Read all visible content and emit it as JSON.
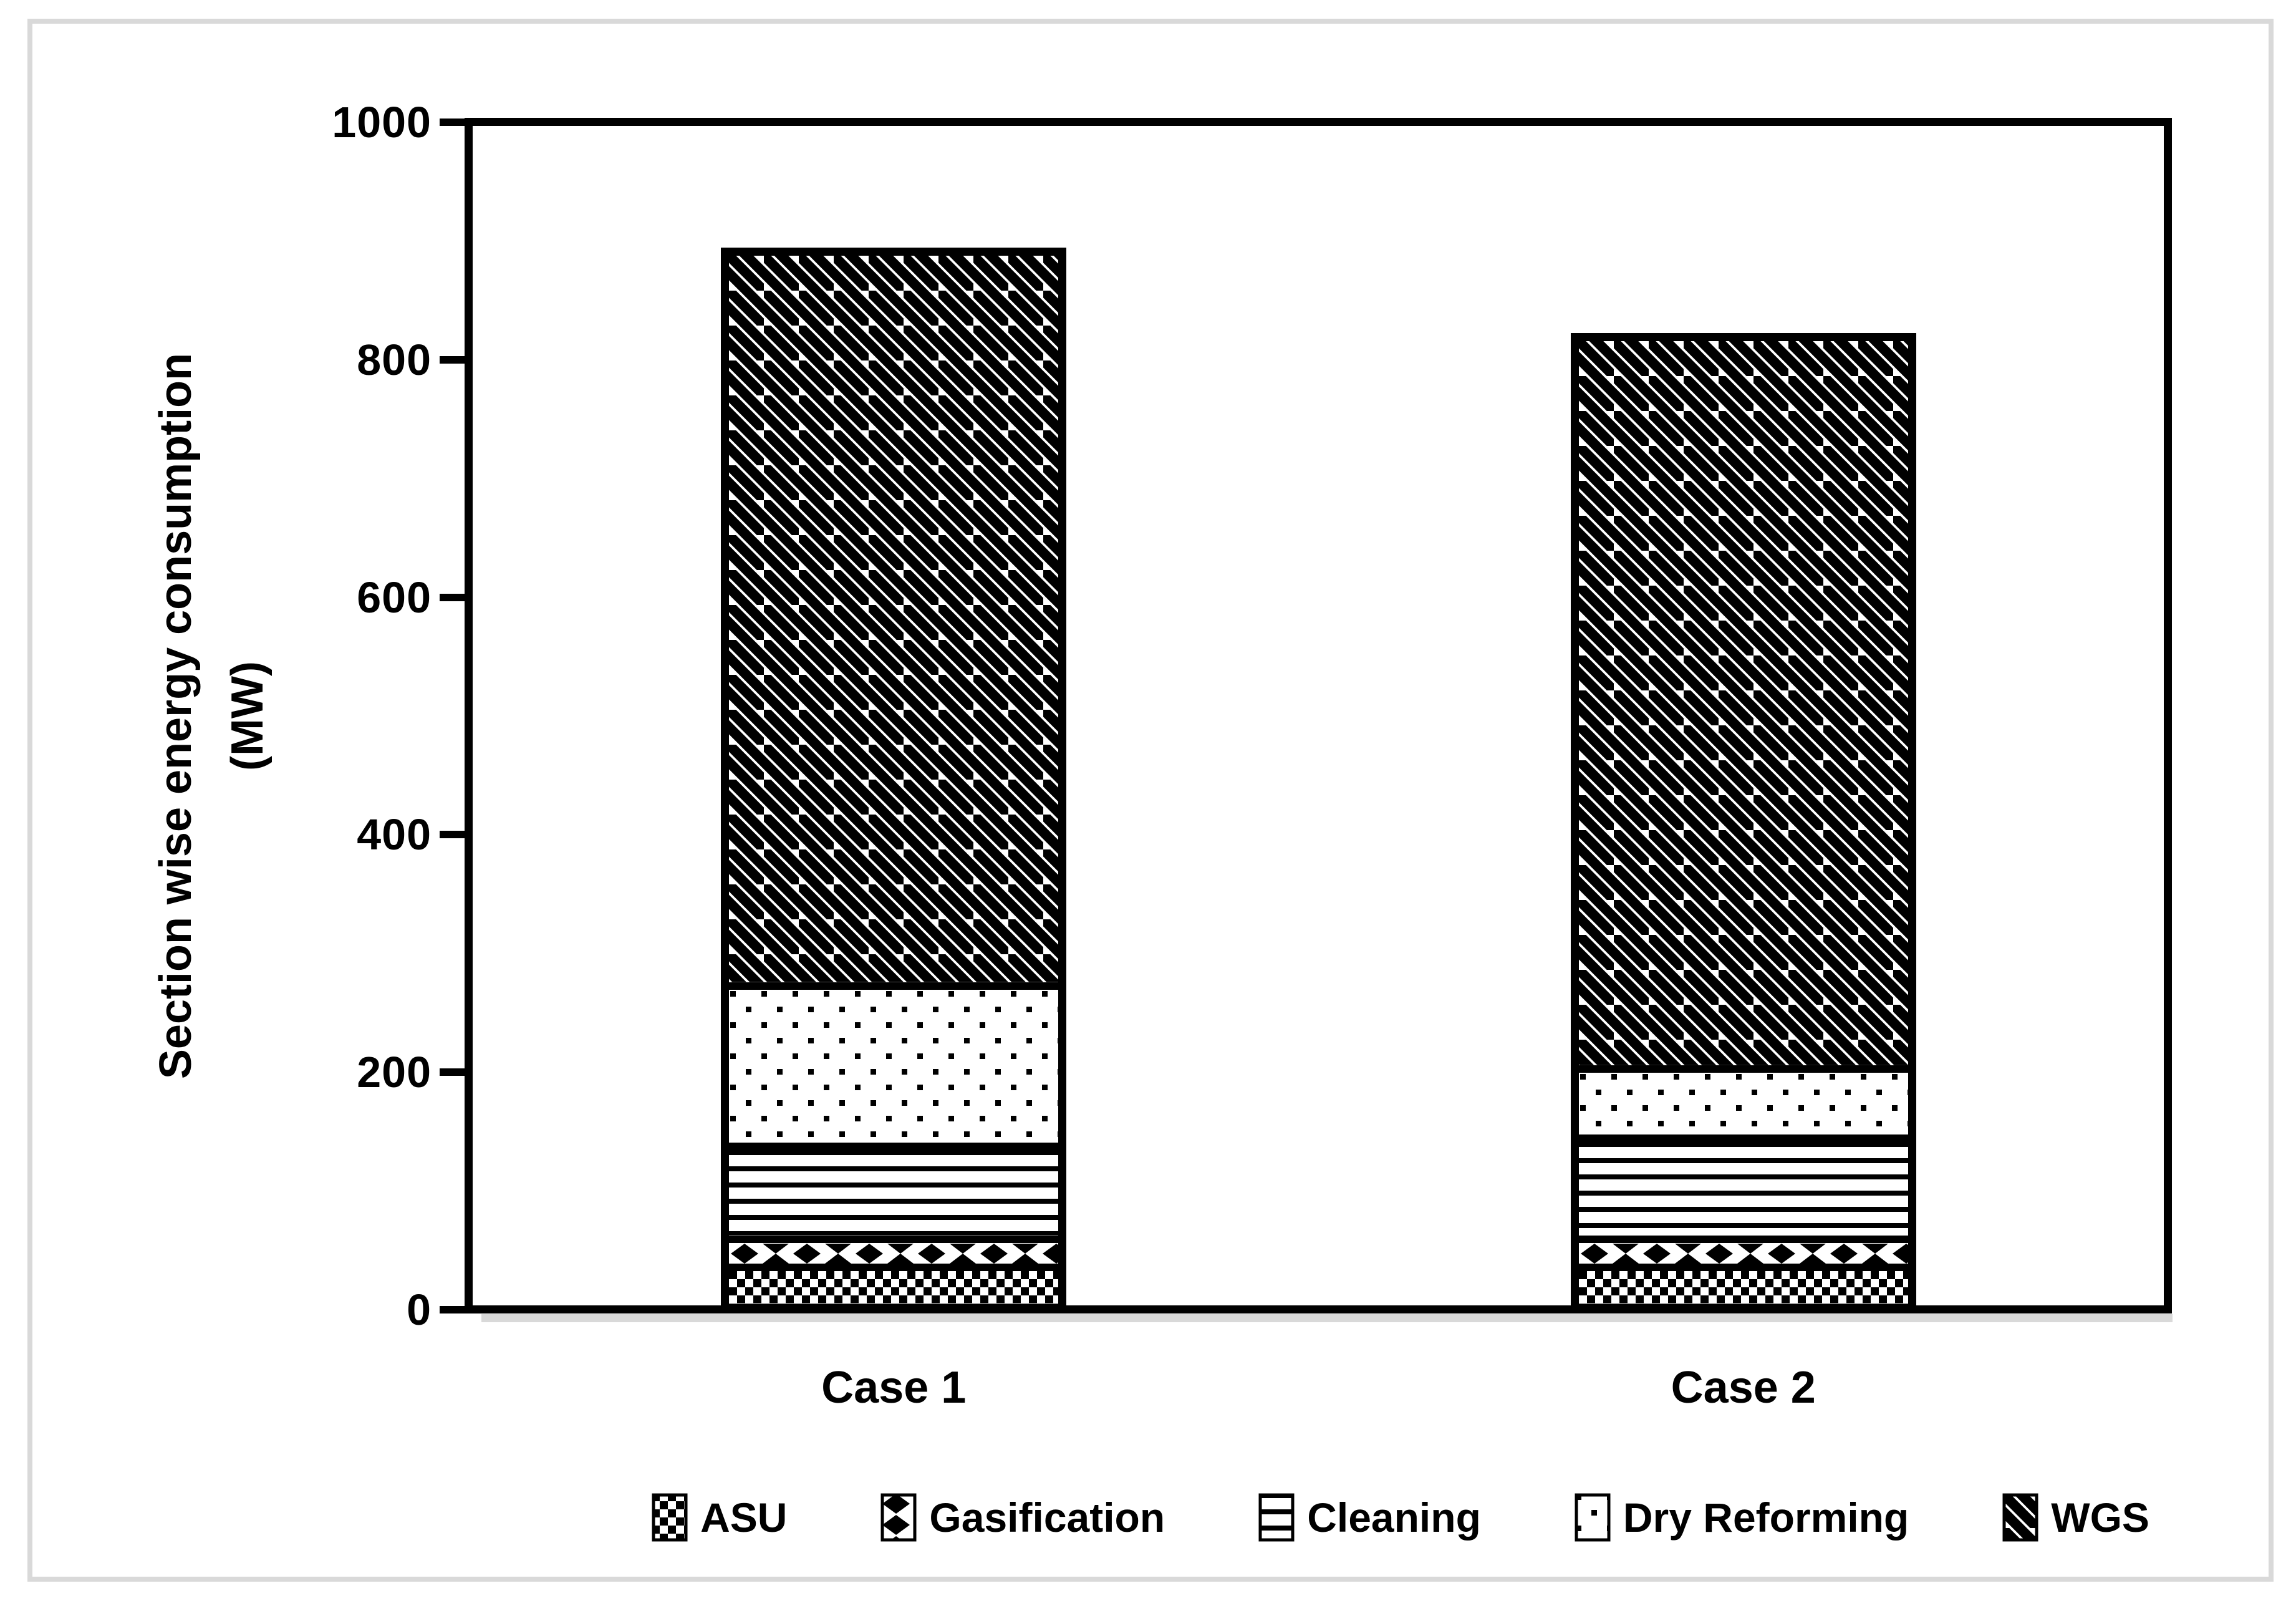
{
  "figure": {
    "background": "#ffffff",
    "outer_border_color": "#d9d9d9",
    "axis_color": "#000000",
    "shadow_color": "#d9d9d9"
  },
  "chart_data": {
    "type": "bar",
    "stacked": true,
    "title": "",
    "categories": [
      "Case 1",
      "Case 2"
    ],
    "series": [
      {
        "name": "ASU",
        "pattern": "checkerboard",
        "values": [
          34,
          34
        ]
      },
      {
        "name": "Gasification",
        "pattern": "diamond-hourglass",
        "values": [
          24,
          24
        ]
      },
      {
        "name": "Cleaning",
        "pattern": "horizontal-lines",
        "values": [
          78,
          85
        ]
      },
      {
        "name": "Dry Reforming",
        "pattern": "sparse-dots",
        "values": [
          135,
          58
        ]
      },
      {
        "name": "WGS",
        "pattern": "diagonal-stripes",
        "values": [
          618,
          616
        ]
      }
    ],
    "totals": [
      889,
      817
    ],
    "ylabel_line1": "Section wise energy consumption",
    "ylabel_line2": "(MW)",
    "xlabel": "",
    "ylim": [
      0,
      1000
    ],
    "ytick_interval": 200,
    "yticks": [
      "0",
      "200",
      "400",
      "600",
      "800",
      "1000"
    ],
    "grid": false,
    "legend_position": "bottom",
    "series_fill": "#000000",
    "series_background": "#ffffff"
  }
}
